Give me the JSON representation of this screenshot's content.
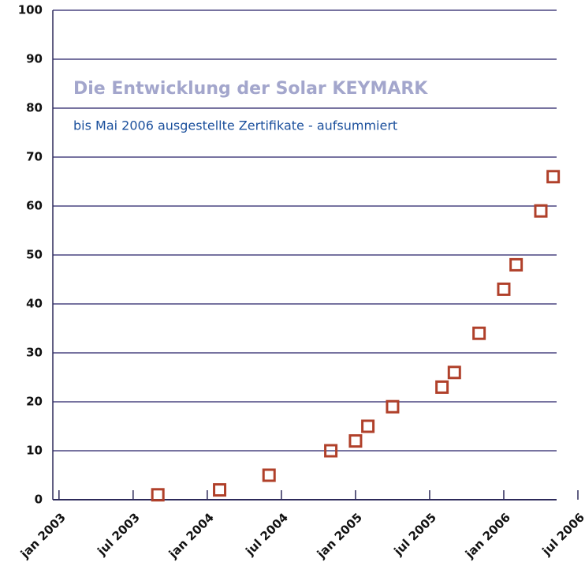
{
  "chart_data": {
    "type": "scatter",
    "title": "Die Entwicklung der Solar KEYMARK",
    "subtitle": "bis Mai 2006 ausgestellte Zertifikate - aufsummiert",
    "x": [
      8,
      13,
      17,
      22,
      24,
      25,
      27,
      31,
      32,
      34,
      36,
      37,
      39,
      40
    ],
    "series": [
      {
        "name": null,
        "color": "#b0402a",
        "values": [
          1,
          2,
          5,
          10,
          12,
          15,
          19,
          23,
          26,
          34,
          43,
          48,
          59,
          66
        ]
      }
    ],
    "xlim": [
      -0.5,
      42
    ],
    "xticks": [
      {
        "value": 0,
        "label": "jan 2003"
      },
      {
        "value": 6,
        "label": "jul 2003"
      },
      {
        "value": 12,
        "label": "jan 2004"
      },
      {
        "value": 18,
        "label": "jul 2004"
      },
      {
        "value": 24,
        "label": "jan 2005"
      },
      {
        "value": 30,
        "label": "jul 2005"
      },
      {
        "value": 36,
        "label": "jan 2006"
      },
      {
        "value": 42,
        "label": "jul 2006"
      }
    ],
    "ylim": [
      0,
      100
    ],
    "yticks": [
      0,
      10,
      20,
      30,
      40,
      50,
      60,
      70,
      80,
      90,
      100
    ],
    "grid": true
  }
}
